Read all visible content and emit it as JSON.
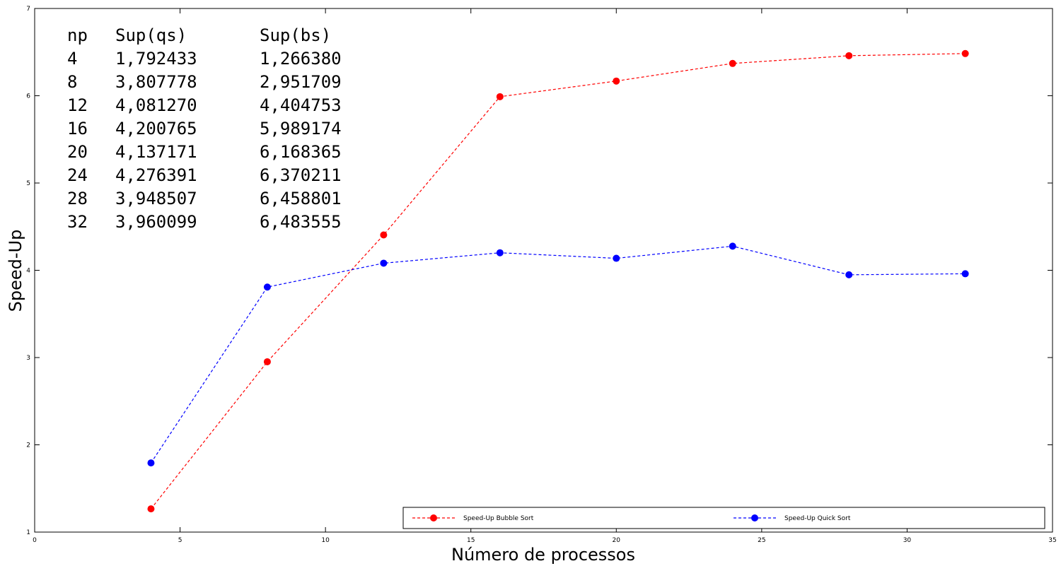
{
  "chart_data": {
    "type": "line",
    "xlabel": "Número de processos",
    "ylabel": "Speed-Up",
    "xlim": [
      0,
      35
    ],
    "ylim": [
      1,
      7
    ],
    "xticks": [
      0,
      5,
      10,
      15,
      20,
      25,
      30,
      35
    ],
    "yticks": [
      1,
      2,
      3,
      4,
      5,
      6,
      7
    ],
    "grid": false,
    "legend_position": "bottom-right",
    "series": [
      {
        "name": "Speed-Up Bubble Sort",
        "color": "#ff0000",
        "line_style": "dashed",
        "marker": "circle",
        "x": [
          4,
          8,
          12,
          16,
          20,
          24,
          28,
          32
        ],
        "y": [
          1.26638,
          2.951709,
          4.404753,
          5.989174,
          6.168365,
          6.370211,
          6.458801,
          6.483555
        ]
      },
      {
        "name": "Speed-Up Quick Sort",
        "color": "#0000ff",
        "line_style": "dashed",
        "marker": "circle",
        "x": [
          4,
          8,
          12,
          16,
          20,
          24,
          28,
          32
        ],
        "y": [
          1.792433,
          3.807778,
          4.08127,
          4.200765,
          4.137171,
          4.276391,
          3.948507,
          3.960099
        ]
      }
    ],
    "annotation_table": {
      "headers": [
        "np",
        "Sup(qs)",
        "Sup(bs)"
      ],
      "rows": [
        [
          "4",
          "1,792433",
          "1,266380"
        ],
        [
          "8",
          "3,807778",
          "2,951709"
        ],
        [
          "12",
          "4,081270",
          "4,404753"
        ],
        [
          "16",
          "4,200765",
          "5,989174"
        ],
        [
          "20",
          "4,137171",
          "6,168365"
        ],
        [
          "24",
          "4,276391",
          "6,370211"
        ],
        [
          "28",
          "3,948507",
          "6,458801"
        ],
        [
          "32",
          "3,960099",
          "6,483555"
        ]
      ]
    }
  }
}
